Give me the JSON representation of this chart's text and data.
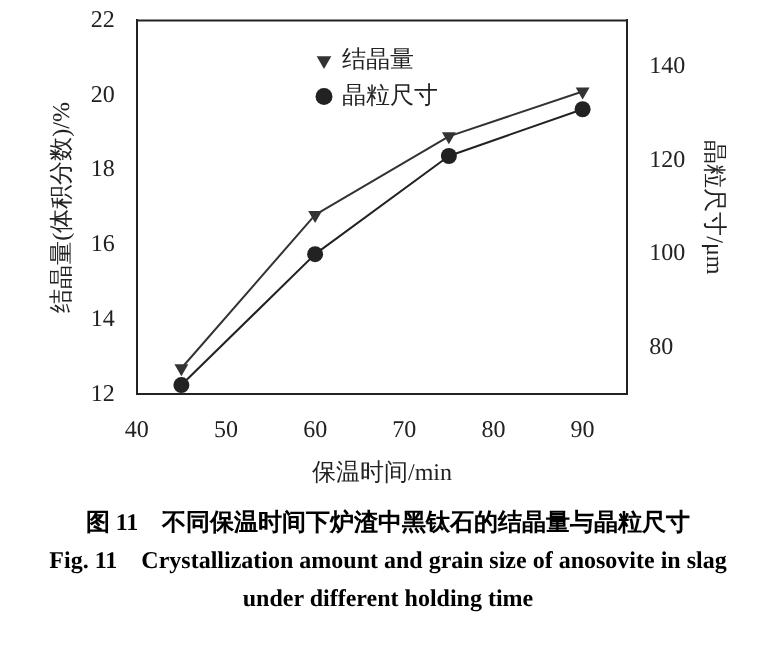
{
  "chart_data": {
    "type": "line",
    "title": "图 11　不同保温时间下炉渣中黑钛石的结晶量与晶粒尺寸",
    "subtitle": "Fig. 11　Crystallization amount and grain size of anosovite in slag under different holding time",
    "xlabel": "保温时间/min",
    "ylabel": "结晶量(体积分数)/%",
    "y2label": "晶粒尺寸/μm",
    "x": [
      45,
      60,
      75,
      90
    ],
    "series": [
      {
        "name": "结晶量",
        "color": "#333333",
        "marker": "triangle",
        "values": [
          12.7,
          16.8,
          18.9,
          20.1
        ]
      },
      {
        "name": "晶粒尺寸",
        "color": "#222222",
        "marker": "circle",
        "axis": "y2",
        "values": [
          72,
          100,
          121,
          131
        ]
      }
    ],
    "xlim": [
      40,
      95
    ],
    "xticks": [
      40,
      50,
      60,
      70,
      80,
      90
    ],
    "ylim": [
      12,
      22
    ],
    "yticks": [
      12,
      14,
      16,
      18,
      20,
      22
    ],
    "y2lim": [
      70,
      150
    ],
    "y2ticks": [
      80,
      100,
      120,
      140
    ],
    "grid": false,
    "legend": "top",
    "line_style": "solid"
  }
}
